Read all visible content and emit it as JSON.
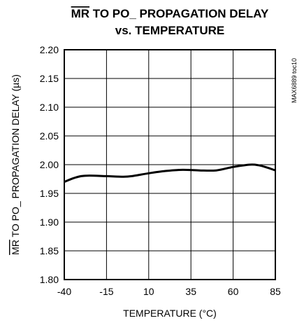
{
  "chart_data": {
    "type": "line",
    "title_overlined": "MR",
    "title_line1_rest": " TO PO_ PROPAGATION DELAY",
    "title_line2": "vs. TEMPERATURE",
    "xlabel": "TEMPERATURE (°C)",
    "ylabel_overlined": "MR",
    "ylabel_rest": " TO PO_ PROPAGATION DELAY (µs)",
    "figure_code": "MAX6889 toc10",
    "xlim": [
      -40,
      85
    ],
    "ylim": [
      1.8,
      2.2
    ],
    "x_ticks": [
      -40,
      -15,
      10,
      35,
      60,
      85
    ],
    "x_tick_labels": [
      "-40",
      "-15",
      "10",
      "35",
      "60",
      "85"
    ],
    "y_ticks": [
      1.8,
      1.85,
      1.9,
      1.95,
      2.0,
      2.05,
      2.1,
      2.15,
      2.2
    ],
    "y_tick_labels": [
      "1.80",
      "1.85",
      "1.90",
      "1.95",
      "2.00",
      "2.05",
      "2.10",
      "2.15",
      "2.20"
    ],
    "grid": true,
    "series": [
      {
        "x": [
          -40,
          -35,
          -30,
          -25,
          -15,
          -5,
          0,
          10,
          20,
          30,
          40,
          50,
          60,
          70,
          75,
          80,
          85
        ],
        "values": [
          1.97,
          1.976,
          1.98,
          1.981,
          1.98,
          1.979,
          1.98,
          1.985,
          1.989,
          1.991,
          1.99,
          1.99,
          1.996,
          2.0,
          1.999,
          1.995,
          1.99
        ]
      }
    ]
  }
}
